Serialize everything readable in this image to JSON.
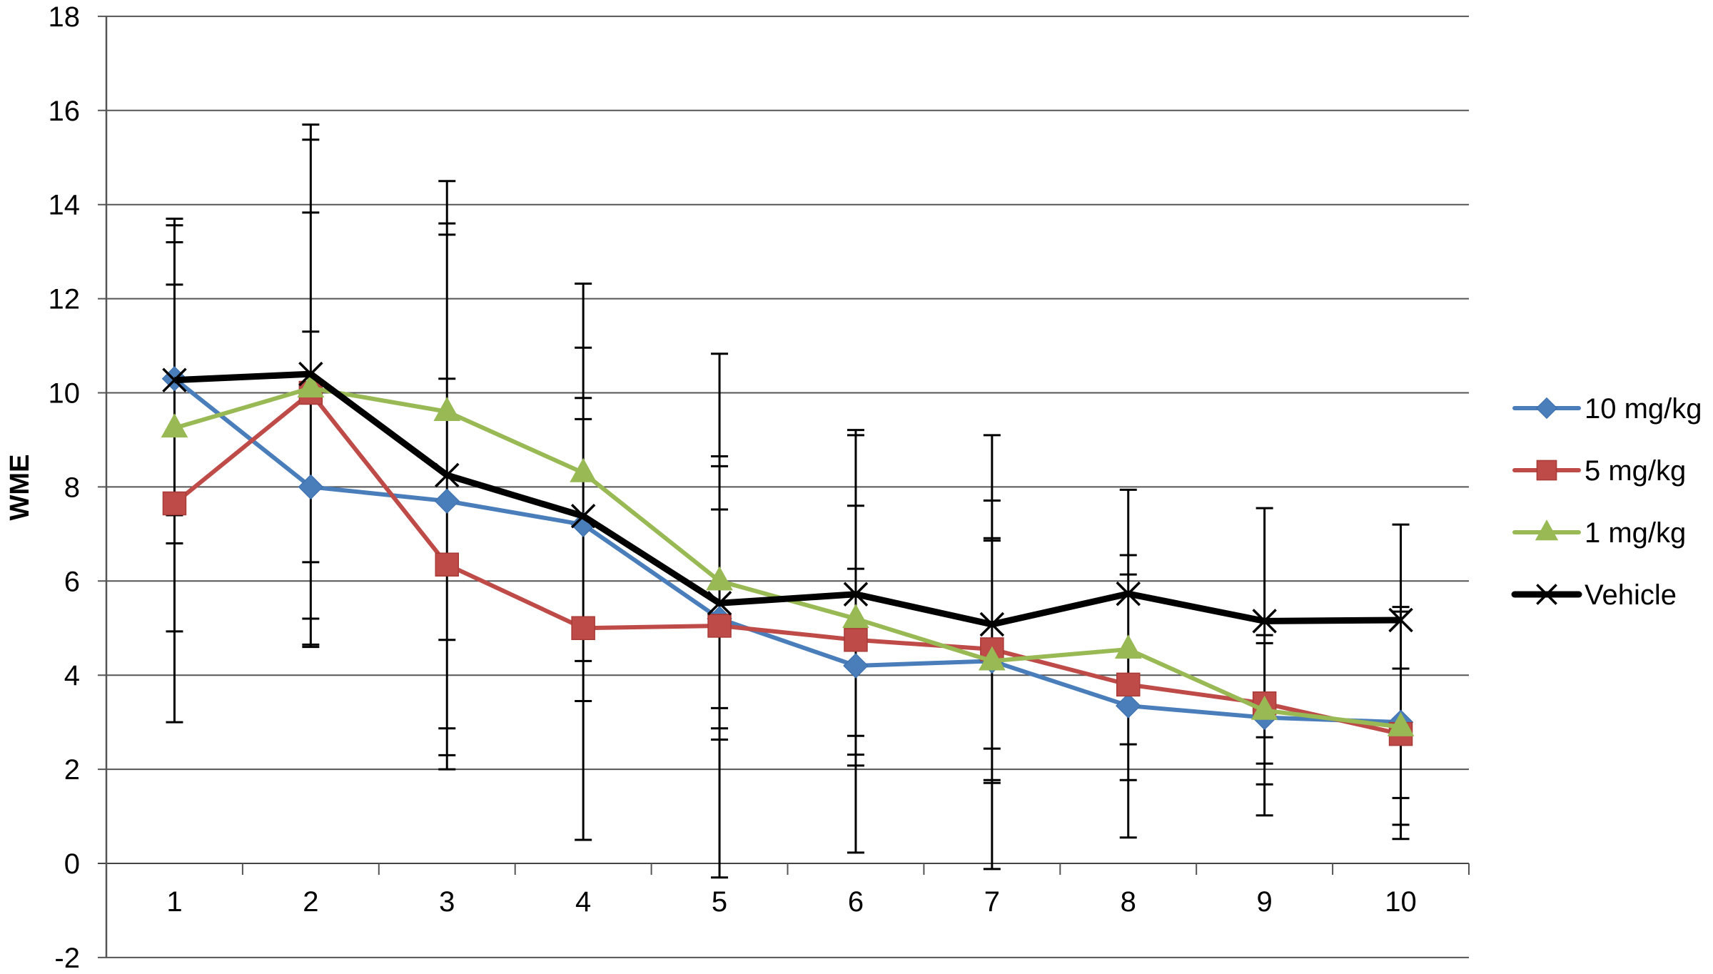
{
  "chart_data": {
    "type": "line",
    "title": "",
    "xlabel": "",
    "ylabel": "WME",
    "ylim": [
      -2,
      18
    ],
    "yticks": [
      -2,
      0,
      2,
      4,
      6,
      8,
      10,
      12,
      14,
      16,
      18
    ],
    "grid": true,
    "legend_position": "right",
    "categories": [
      "1",
      "2",
      "3",
      "4",
      "5",
      "6",
      "7",
      "8",
      "9",
      "10"
    ],
    "series": [
      {
        "name": "10 mg/kg",
        "color": "#4A7EBB",
        "marker": "diamond",
        "values": [
          10.3,
          8.0,
          7.7,
          7.2,
          5.2,
          4.2,
          4.3,
          3.35,
          3.1,
          3.0
        ]
      },
      {
        "name": "5 mg/kg",
        "color": "#BE4B48",
        "marker": "square",
        "values": [
          7.65,
          10.0,
          6.35,
          5.0,
          5.05,
          4.75,
          4.55,
          3.8,
          3.4,
          2.75
        ]
      },
      {
        "name": "1 mg/kg",
        "color": "#98B954",
        "marker": "triangle",
        "values": [
          9.25,
          10.1,
          9.6,
          8.3,
          6.0,
          5.2,
          4.3,
          4.55,
          3.25,
          2.9
        ]
      },
      {
        "name": "Vehicle",
        "color": "#000000",
        "marker": "x",
        "values": [
          10.27,
          10.4,
          8.25,
          7.38,
          5.53,
          5.72,
          5.08,
          5.73,
          5.15,
          5.17
        ]
      }
    ],
    "error_bar_caps": [
      [
        13.7,
        13.56,
        13.2,
        12.3,
        7.4,
        6.8,
        4.93,
        3.0
      ],
      [
        15.7,
        15.38,
        13.83,
        11.3,
        6.4,
        5.2,
        4.65,
        4.6
      ],
      [
        14.5,
        13.6,
        13.36,
        10.3,
        4.75,
        2.87,
        2.3,
        2.0
      ],
      [
        12.32,
        10.96,
        9.89,
        9.44,
        4.3,
        3.45,
        0.5
      ],
      [
        10.83,
        8.65,
        8.44,
        7.52,
        3.3,
        2.87,
        2.63,
        -0.3
      ],
      [
        9.21,
        9.1,
        7.6,
        6.26,
        2.71,
        2.31,
        2.08,
        0.23
      ],
      [
        9.1,
        7.71,
        6.91,
        6.86,
        2.44,
        1.77,
        1.71,
        -0.12
      ],
      [
        7.94,
        6.55,
        6.14,
        2.53,
        1.77,
        0.55
      ],
      [
        7.55,
        4.85,
        4.68,
        2.68,
        2.12,
        1.68,
        1.02
      ],
      [
        7.2,
        5.45,
        5.35,
        4.14,
        1.39,
        0.82,
        0.52
      ]
    ]
  },
  "legend": {
    "items": [
      {
        "label": "10 mg/kg"
      },
      {
        "label": "5 mg/kg"
      },
      {
        "label": "1 mg/kg"
      },
      {
        "label": "Vehicle"
      }
    ]
  },
  "axis": {
    "ylabel": "WME"
  }
}
